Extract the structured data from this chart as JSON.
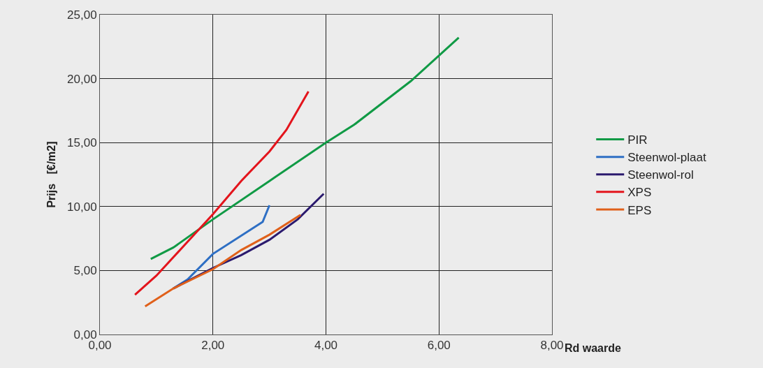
{
  "chart_data": {
    "type": "line",
    "xlabel": "Rd waarde",
    "ylabel": "Prijs   [€/m2]",
    "xlim": [
      0,
      8
    ],
    "ylim": [
      0,
      25
    ],
    "xticks": [
      {
        "value": 0,
        "label": "0,00"
      },
      {
        "value": 2,
        "label": "2,00"
      },
      {
        "value": 4,
        "label": "4,00"
      },
      {
        "value": 6,
        "label": "6,00"
      },
      {
        "value": 8,
        "label": "8,00"
      }
    ],
    "yticks": [
      {
        "value": 0,
        "label": "0,00"
      },
      {
        "value": 5,
        "label": "5,00"
      },
      {
        "value": 10,
        "label": "10,00"
      },
      {
        "value": 15,
        "label": "15,00"
      },
      {
        "value": 20,
        "label": "20,00"
      },
      {
        "value": 25,
        "label": "25,00"
      }
    ],
    "grid": true,
    "legend": "right",
    "marker": "none",
    "line_style": "solid",
    "series": [
      {
        "name": "PIR",
        "color": "#109a45",
        "x": [
          0.9,
          1.3,
          2.0,
          3.0,
          4.0,
          4.5,
          5.5,
          6.35
        ],
        "values": [
          5.9,
          6.8,
          9.0,
          12.0,
          15.0,
          16.4,
          19.8,
          23.2
        ]
      },
      {
        "name": "Steenwol-plaat",
        "color": "#2e6fc4",
        "x": [
          1.3,
          1.55,
          2.0,
          2.88,
          3.0
        ],
        "values": [
          3.6,
          4.3,
          6.3,
          8.8,
          10.1
        ]
      },
      {
        "name": "Steenwol-rol",
        "color": "#2b1a6e",
        "x": [
          1.3,
          2.0,
          2.5,
          3.0,
          3.5,
          3.96
        ],
        "values": [
          3.6,
          5.2,
          6.2,
          7.4,
          9.0,
          11.0
        ]
      },
      {
        "name": "XPS",
        "color": "#e3141c",
        "x": [
          0.62,
          1.0,
          1.5,
          2.0,
          2.5,
          3.0,
          3.3,
          3.69
        ],
        "values": [
          3.1,
          4.6,
          7.0,
          9.4,
          12.0,
          14.3,
          16.0,
          19.0
        ]
      },
      {
        "name": "EPS",
        "color": "#e0601a",
        "x": [
          0.8,
          1.3,
          2.0,
          2.5,
          3.0,
          3.55
        ],
        "values": [
          2.2,
          3.6,
          5.1,
          6.6,
          7.8,
          9.35
        ]
      }
    ]
  }
}
